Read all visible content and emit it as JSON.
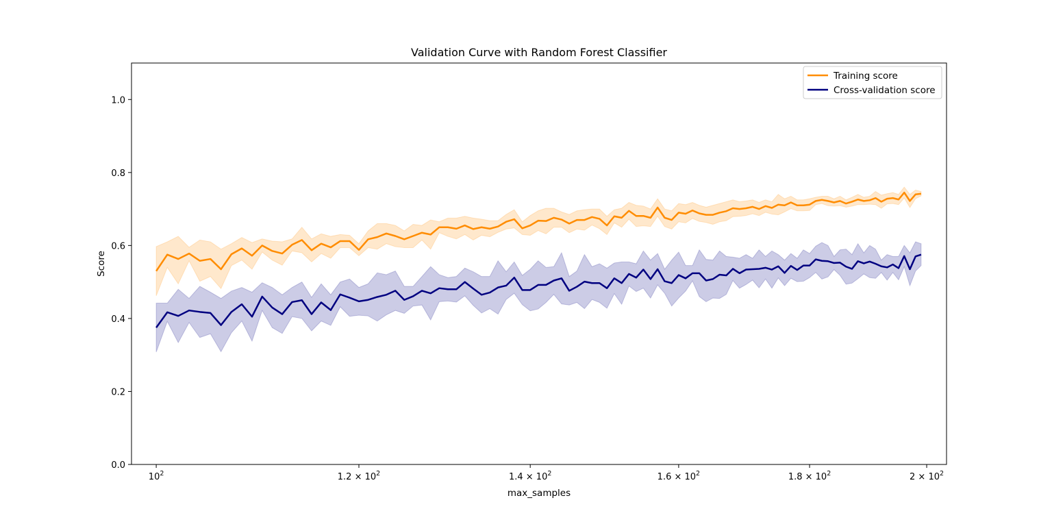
{
  "chart_data": {
    "type": "line",
    "title": "Validation Curve with Random Forest Classifier",
    "xlabel": "max_samples",
    "ylabel": "Score",
    "xscale": "log",
    "xlim": [
      97.8,
      203.6
    ],
    "ylim": [
      0.0,
      1.1
    ],
    "yticks": [
      0.0,
      0.2,
      0.4,
      0.6,
      0.8,
      1.0
    ],
    "yticklabels": [
      "0.0",
      "0.2",
      "0.4",
      "0.6",
      "0.8",
      "1.0"
    ],
    "xticks": [
      100,
      120,
      140,
      160,
      180,
      200
    ],
    "xticklabels": [
      {
        "mantissa": "",
        "exp": "2"
      },
      {
        "mantissa": "1.2 × ",
        "exp": "2"
      },
      {
        "mantissa": "1.4 × ",
        "exp": "2"
      },
      {
        "mantissa": "1.6 × ",
        "exp": "2"
      },
      {
        "mantissa": "1.8 × ",
        "exp": "2"
      },
      {
        "mantissa": "2 × ",
        "exp": "2"
      }
    ],
    "x_start": 100,
    "x_end": 199,
    "grid": false,
    "legend": "upper right",
    "series": [
      {
        "name": "Training score",
        "color": "#ff8c00",
        "band_color": "#ff8c00",
        "band_alpha": 0.2,
        "mean": [
          0.53,
          0.575,
          0.563,
          0.578,
          0.558,
          0.563,
          0.535,
          0.576,
          0.592,
          0.572,
          0.6,
          0.585,
          0.578,
          0.602,
          0.615,
          0.587,
          0.605,
          0.595,
          0.612,
          0.612,
          0.588,
          0.617,
          0.623,
          0.633,
          0.626,
          0.617,
          0.626,
          0.635,
          0.63,
          0.65,
          0.65,
          0.646,
          0.655,
          0.645,
          0.65,
          0.646,
          0.652,
          0.665,
          0.672,
          0.647,
          0.655,
          0.668,
          0.667,
          0.676,
          0.671,
          0.66,
          0.67,
          0.67,
          0.678,
          0.673,
          0.655,
          0.68,
          0.676,
          0.695,
          0.681,
          0.681,
          0.676,
          0.704,
          0.676,
          0.67,
          0.69,
          0.687,
          0.696,
          0.688,
          0.684,
          0.684,
          0.69,
          0.694,
          0.702,
          0.7,
          0.702,
          0.706,
          0.7,
          0.708,
          0.703,
          0.712,
          0.71,
          0.718,
          0.71,
          0.71,
          0.712,
          0.722,
          0.725,
          0.722,
          0.718,
          0.722,
          0.715,
          0.72,
          0.726,
          0.722,
          0.724,
          0.73,
          0.72,
          0.728,
          0.73,
          0.726,
          0.745,
          0.722,
          0.74,
          0.742
        ],
        "upper": [
          0.597,
          0.61,
          0.625,
          0.595,
          0.615,
          0.61,
          0.59,
          0.605,
          0.622,
          0.608,
          0.618,
          0.612,
          0.61,
          0.618,
          0.65,
          0.618,
          0.632,
          0.625,
          0.63,
          0.628,
          0.605,
          0.64,
          0.66,
          0.66,
          0.655,
          0.64,
          0.658,
          0.655,
          0.67,
          0.665,
          0.675,
          0.675,
          0.68,
          0.675,
          0.672,
          0.668,
          0.668,
          0.685,
          0.698,
          0.665,
          0.682,
          0.695,
          0.702,
          0.702,
          0.692,
          0.685,
          0.695,
          0.698,
          0.7,
          0.7,
          0.68,
          0.698,
          0.702,
          0.718,
          0.71,
          0.708,
          0.7,
          0.728,
          0.7,
          0.695,
          0.715,
          0.712,
          0.718,
          0.71,
          0.705,
          0.71,
          0.715,
          0.72,
          0.725,
          0.72,
          0.722,
          0.725,
          0.718,
          0.725,
          0.72,
          0.74,
          0.728,
          0.735,
          0.725,
          0.725,
          0.728,
          0.732,
          0.735,
          0.735,
          0.728,
          0.735,
          0.725,
          0.732,
          0.74,
          0.732,
          0.735,
          0.748,
          0.738,
          0.742,
          0.745,
          0.74,
          0.76,
          0.74,
          0.752,
          0.748
        ],
        "lower": [
          0.462,
          0.54,
          0.495,
          0.558,
          0.502,
          0.515,
          0.482,
          0.545,
          0.56,
          0.535,
          0.582,
          0.56,
          0.546,
          0.585,
          0.58,
          0.555,
          0.578,
          0.565,
          0.594,
          0.594,
          0.572,
          0.594,
          0.59,
          0.605,
          0.597,
          0.594,
          0.594,
          0.615,
          0.59,
          0.635,
          0.625,
          0.618,
          0.63,
          0.615,
          0.628,
          0.624,
          0.636,
          0.645,
          0.648,
          0.63,
          0.628,
          0.641,
          0.632,
          0.65,
          0.65,
          0.635,
          0.645,
          0.642,
          0.656,
          0.646,
          0.63,
          0.662,
          0.65,
          0.672,
          0.652,
          0.654,
          0.652,
          0.68,
          0.652,
          0.645,
          0.665,
          0.662,
          0.674,
          0.666,
          0.663,
          0.658,
          0.665,
          0.668,
          0.679,
          0.68,
          0.682,
          0.687,
          0.682,
          0.691,
          0.686,
          0.684,
          0.692,
          0.701,
          0.695,
          0.695,
          0.696,
          0.712,
          0.715,
          0.709,
          0.708,
          0.709,
          0.705,
          0.708,
          0.712,
          0.712,
          0.713,
          0.712,
          0.702,
          0.714,
          0.715,
          0.712,
          0.73,
          0.704,
          0.728,
          0.736
        ]
      },
      {
        "name": "Cross-validation score",
        "color": "#000080",
        "band_color": "#000080",
        "band_alpha": 0.2,
        "mean": [
          0.375,
          0.417,
          0.407,
          0.422,
          0.418,
          0.415,
          0.382,
          0.418,
          0.439,
          0.405,
          0.46,
          0.43,
          0.412,
          0.445,
          0.45,
          0.412,
          0.444,
          0.423,
          0.466,
          0.457,
          0.447,
          0.451,
          0.459,
          0.465,
          0.476,
          0.451,
          0.461,
          0.476,
          0.469,
          0.483,
          0.48,
          0.48,
          0.5,
          0.482,
          0.465,
          0.471,
          0.485,
          0.49,
          0.512,
          0.478,
          0.478,
          0.492,
          0.492,
          0.504,
          0.51,
          0.476,
          0.487,
          0.501,
          0.497,
          0.497,
          0.483,
          0.51,
          0.497,
          0.522,
          0.512,
          0.534,
          0.508,
          0.535,
          0.502,
          0.497,
          0.519,
          0.51,
          0.524,
          0.524,
          0.504,
          0.508,
          0.52,
          0.518,
          0.536,
          0.524,
          0.534,
          0.535,
          0.536,
          0.539,
          0.534,
          0.543,
          0.525,
          0.544,
          0.533,
          0.545,
          0.545,
          0.562,
          0.558,
          0.557,
          0.552,
          0.553,
          0.542,
          0.536,
          0.557,
          0.551,
          0.556,
          0.55,
          0.543,
          0.54,
          0.548,
          0.538,
          0.571,
          0.535,
          0.57,
          0.575
        ],
        "upper": [
          0.442,
          0.442,
          0.48,
          0.455,
          0.488,
          0.472,
          0.455,
          0.475,
          0.485,
          0.472,
          0.498,
          0.485,
          0.465,
          0.485,
          0.5,
          0.458,
          0.495,
          0.465,
          0.5,
          0.508,
          0.485,
          0.495,
          0.525,
          0.52,
          0.53,
          0.488,
          0.488,
          0.515,
          0.542,
          0.52,
          0.512,
          0.515,
          0.538,
          0.528,
          0.515,
          0.515,
          0.558,
          0.528,
          0.555,
          0.518,
          0.535,
          0.558,
          0.54,
          0.542,
          0.58,
          0.515,
          0.53,
          0.575,
          0.542,
          0.55,
          0.538,
          0.552,
          0.555,
          0.555,
          0.55,
          0.585,
          0.56,
          0.578,
          0.535,
          0.56,
          0.582,
          0.545,
          0.545,
          0.588,
          0.562,
          0.56,
          0.585,
          0.57,
          0.568,
          0.565,
          0.575,
          0.565,
          0.588,
          0.57,
          0.585,
          0.575,
          0.56,
          0.578,
          0.565,
          0.588,
          0.578,
          0.598,
          0.608,
          0.6,
          0.57,
          0.588,
          0.59,
          0.575,
          0.605,
          0.58,
          0.6,
          0.59,
          0.56,
          0.575,
          0.57,
          0.57,
          0.6,
          0.58,
          0.61,
          0.605
        ],
        "lower": [
          0.308,
          0.392,
          0.334,
          0.389,
          0.348,
          0.358,
          0.309,
          0.361,
          0.393,
          0.338,
          0.422,
          0.375,
          0.359,
          0.405,
          0.4,
          0.366,
          0.393,
          0.381,
          0.432,
          0.406,
          0.409,
          0.407,
          0.393,
          0.41,
          0.422,
          0.414,
          0.434,
          0.437,
          0.396,
          0.446,
          0.448,
          0.445,
          0.462,
          0.436,
          0.415,
          0.427,
          0.412,
          0.452,
          0.469,
          0.438,
          0.421,
          0.426,
          0.444,
          0.466,
          0.44,
          0.437,
          0.444,
          0.427,
          0.452,
          0.444,
          0.428,
          0.468,
          0.439,
          0.489,
          0.474,
          0.483,
          0.456,
          0.492,
          0.469,
          0.434,
          0.456,
          0.475,
          0.503,
          0.46,
          0.446,
          0.456,
          0.455,
          0.466,
          0.504,
          0.483,
          0.493,
          0.505,
          0.484,
          0.508,
          0.483,
          0.511,
          0.49,
          0.51,
          0.501,
          0.502,
          0.512,
          0.526,
          0.508,
          0.514,
          0.534,
          0.518,
          0.494,
          0.497,
          0.509,
          0.522,
          0.512,
          0.51,
          0.526,
          0.505,
          0.526,
          0.506,
          0.542,
          0.49,
          0.53,
          0.545
        ]
      }
    ]
  }
}
